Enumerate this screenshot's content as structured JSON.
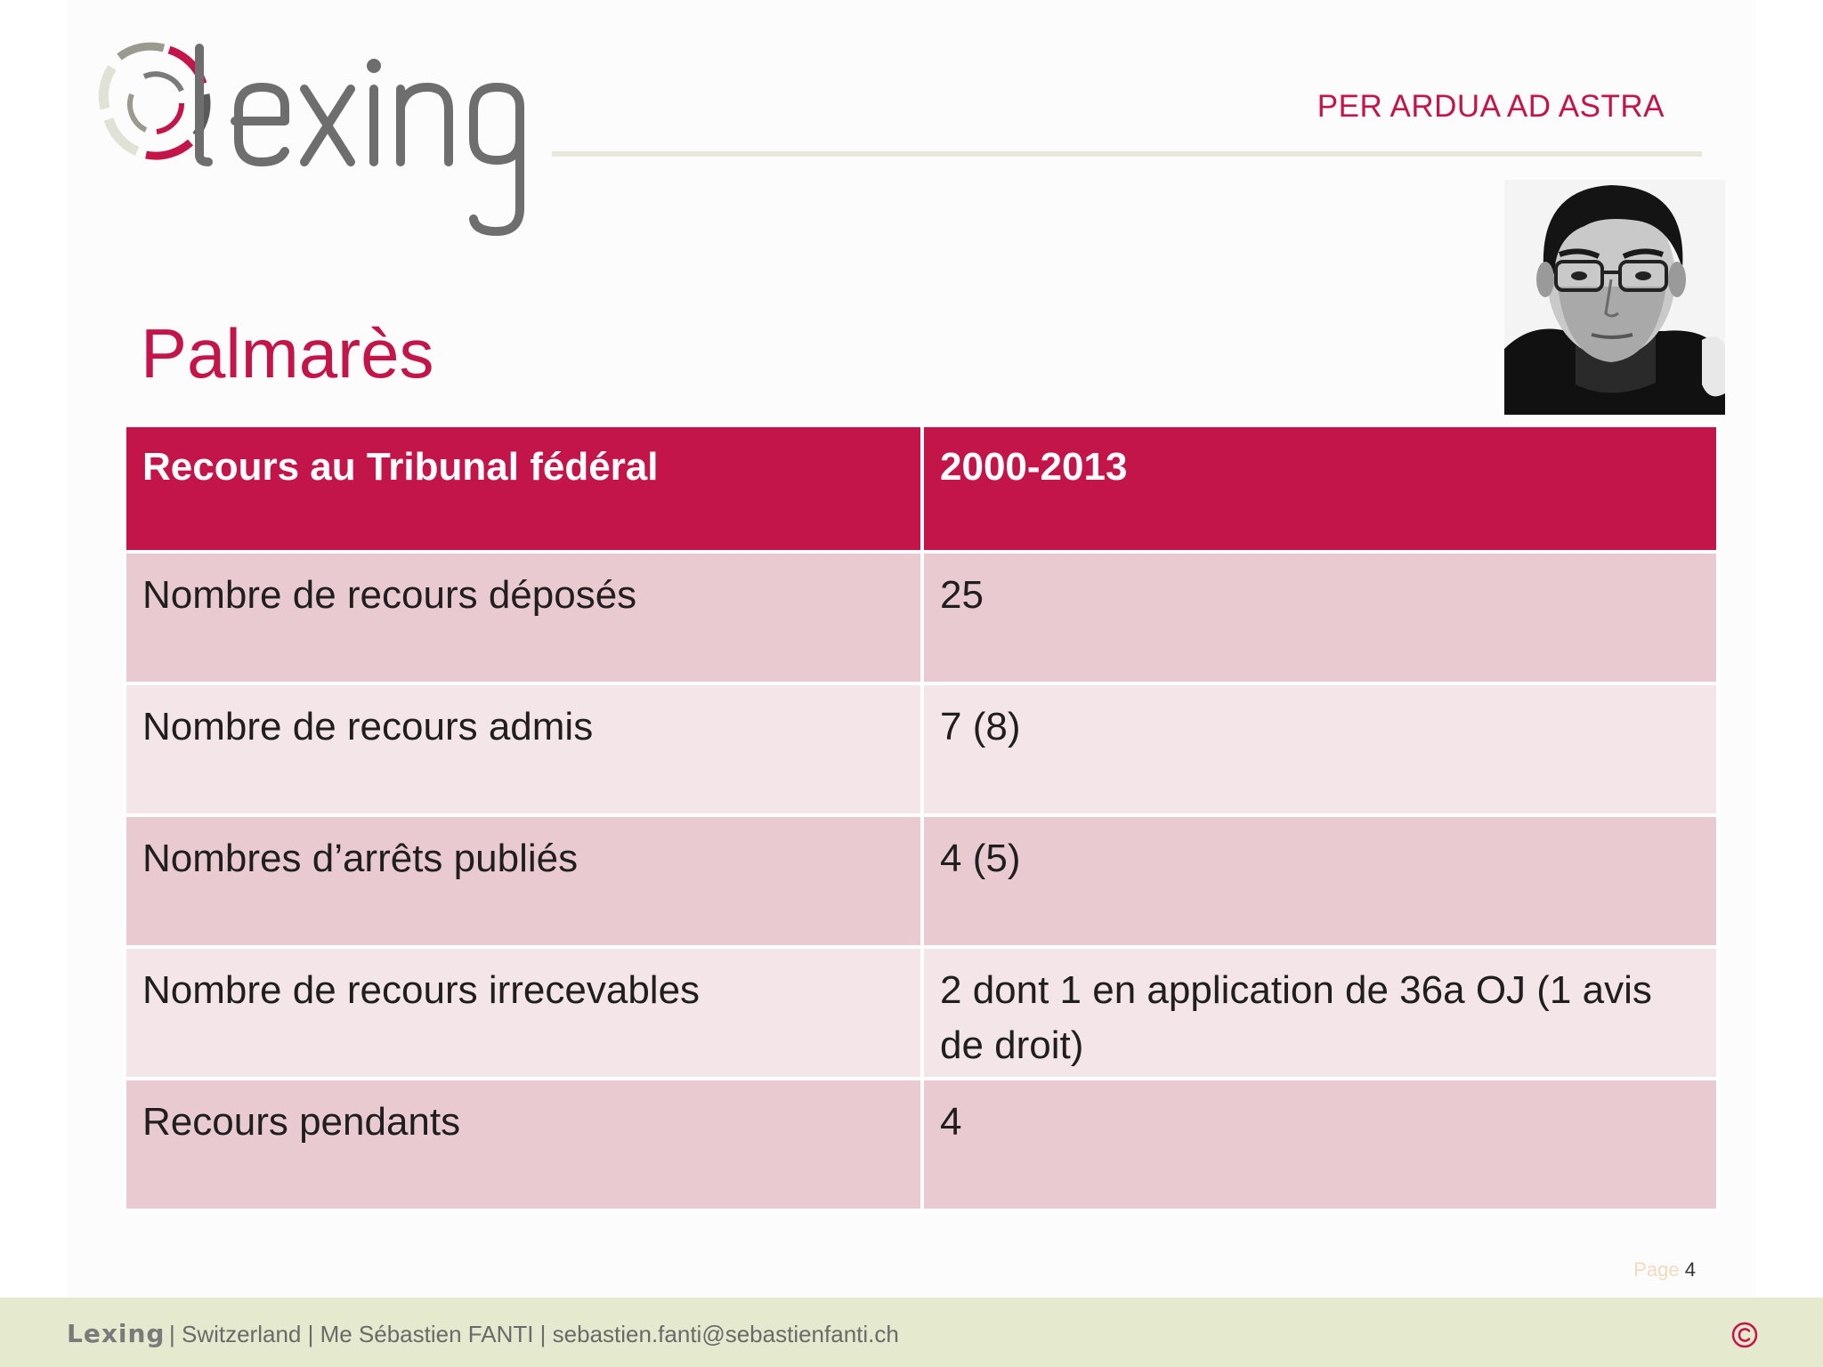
{
  "header": {
    "logo_text": "lexing",
    "motto": "PER ARDUA AD ASTRA"
  },
  "page": {
    "title": "Palmarès",
    "page_label": "Page",
    "page_number": "4"
  },
  "table": {
    "headers": [
      "Recours au Tribunal fédéral",
      "2000-2013"
    ],
    "rows": [
      {
        "label": "Nombre de recours déposés",
        "value": "25"
      },
      {
        "label": "Nombre de recours admis",
        "value": "7 (8)"
      },
      {
        "label": "Nombres d’arrêts publiés",
        "value": "4 (5)"
      },
      {
        "label": "Nombre de recours irrecevables",
        "value": "2 dont 1 en application de 36a OJ (1 avis de droit)"
      },
      {
        "label": "Recours pendants",
        "value": "4"
      }
    ]
  },
  "footer": {
    "brand": "Lexing",
    "info": "| Switzerland | Me Sébastien FANTI | sebastien.fanti@sebastienfanti.ch",
    "copyright_icon": "copyright-icon"
  },
  "colors": {
    "accent": "#c4154a",
    "row_dark": "#e9cad0",
    "row_light": "#f4e5e8",
    "footer_bg": "#e5e9cd"
  }
}
